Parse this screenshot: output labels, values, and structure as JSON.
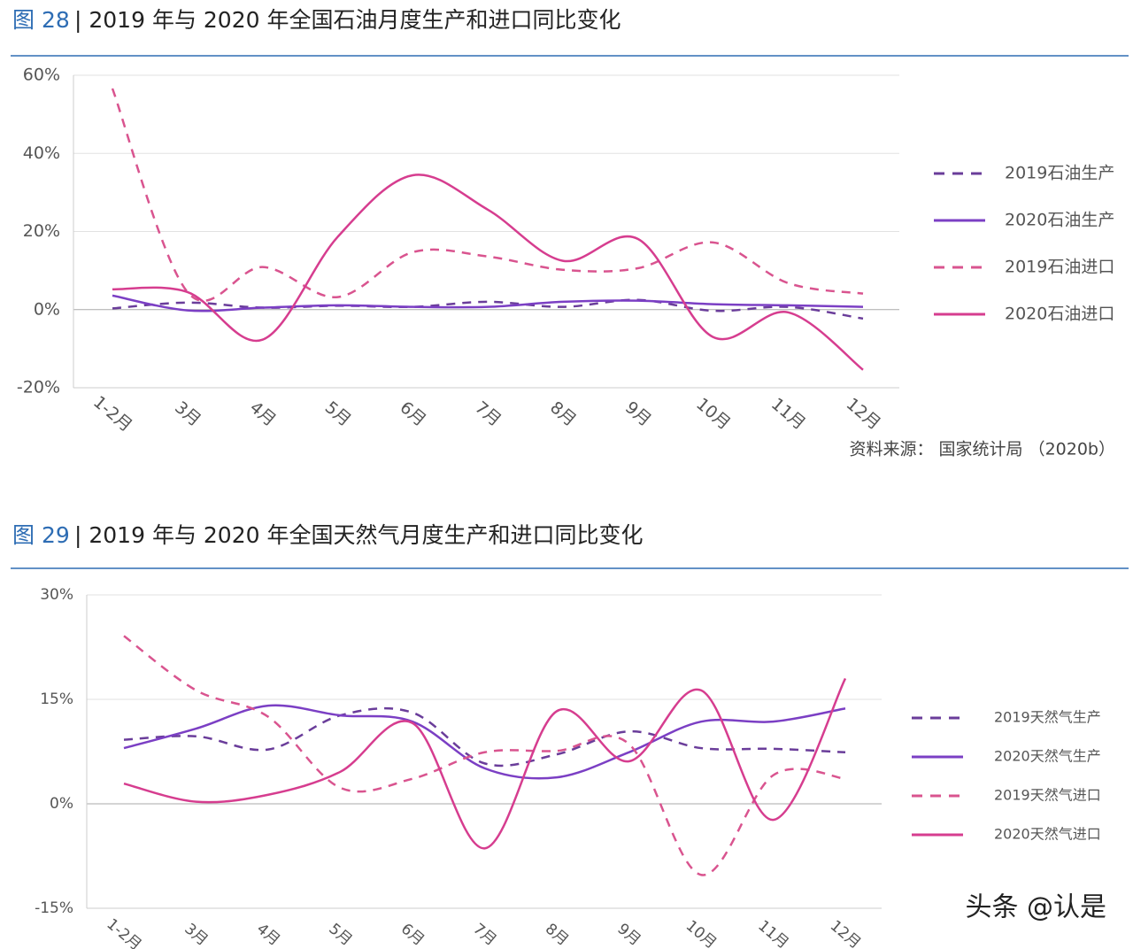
{
  "chart_data": [
    {
      "type": "line",
      "figure_label": "图 28",
      "title": "| 2019 年与 2020 年全国石油月度生产和进口同比变化",
      "source": "资料来源： 国家统计局 （2020b）",
      "categories": [
        "1-2月",
        "3月",
        "4月",
        "5月",
        "6月",
        "7月",
        "8月",
        "9月",
        "10月",
        "11月",
        "12月"
      ],
      "ylim": [
        -20,
        60
      ],
      "yticks": [
        {
          "value": -20,
          "label": "-20%"
        },
        {
          "value": 0,
          "label": "0%"
        },
        {
          "value": 20,
          "label": "20%"
        },
        {
          "value": 40,
          "label": "40%"
        },
        {
          "value": 60,
          "label": "60%"
        }
      ],
      "grid": true,
      "legend": "right",
      "series": [
        {
          "name": "2019石油生产",
          "color": "#6a3d9a",
          "style": "dashed",
          "values": [
            0.3,
            1.8,
            0.5,
            1,
            0.7,
            2,
            0.7,
            2.5,
            -0.3,
            0.7,
            -2.3
          ]
        },
        {
          "name": "2020石油生产",
          "color": "#7b3fc4",
          "style": "solid",
          "values": [
            3.6,
            -0.2,
            0.5,
            1.1,
            0.7,
            0.7,
            2,
            2.3,
            1.4,
            1.1,
            0.7
          ]
        },
        {
          "name": "2019石油进口",
          "color": "#d9548f",
          "style": "dashed",
          "values": [
            56.6,
            4.5,
            10.9,
            3.2,
            14.7,
            13.6,
            10.2,
            10.6,
            17.2,
            6.8,
            4.1
          ]
        },
        {
          "name": "2020石油进口",
          "color": "#d63d8f",
          "style": "solid",
          "values": [
            5.2,
            4.5,
            -7.7,
            18.6,
            34.4,
            25.6,
            12.5,
            18.1,
            -7,
            -0.7,
            -15.4
          ]
        }
      ]
    },
    {
      "type": "line",
      "figure_label": "图 29",
      "title": "| 2019 年与 2020 年全国天然气月度生产和进口同比变化",
      "categories": [
        "1-2月",
        "3月",
        "4月",
        "5月",
        "6月",
        "7月",
        "8月",
        "9月",
        "10月",
        "11月",
        "12月"
      ],
      "ylim": [
        -15,
        30
      ],
      "yticks": [
        {
          "value": -15,
          "label": "-15%"
        },
        {
          "value": 0,
          "label": "0%"
        },
        {
          "value": 15,
          "label": "15%"
        },
        {
          "value": 30,
          "label": "30%"
        }
      ],
      "grid": true,
      "legend": "right",
      "series": [
        {
          "name": "2019天然气生产",
          "color": "#6a3d9a",
          "style": "dashed",
          "values": [
            9.2,
            9.7,
            7.8,
            12.7,
            13.1,
            5.8,
            7.1,
            10.4,
            8,
            7.9,
            7.4
          ]
        },
        {
          "name": "2020天然气生产",
          "color": "#7b3fc4",
          "style": "solid",
          "values": [
            8,
            10.8,
            14.1,
            12.7,
            11.8,
            5.1,
            3.8,
            7.4,
            11.8,
            11.8,
            13.7
          ]
        },
        {
          "name": "2019天然气进口",
          "color": "#d9548f",
          "style": "dashed",
          "values": [
            24.1,
            16.3,
            12.5,
            2.3,
            3.6,
            7.4,
            7.6,
            8.6,
            -10.2,
            4.1,
            3.6
          ]
        },
        {
          "name": "2020天然气进口",
          "color": "#d63d8f",
          "style": "solid",
          "values": [
            2.9,
            0.3,
            1.3,
            4.6,
            11.6,
            -6.4,
            13.3,
            6.1,
            16.3,
            -2.3,
            18
          ]
        }
      ]
    }
  ],
  "watermark": "头条 @认是"
}
